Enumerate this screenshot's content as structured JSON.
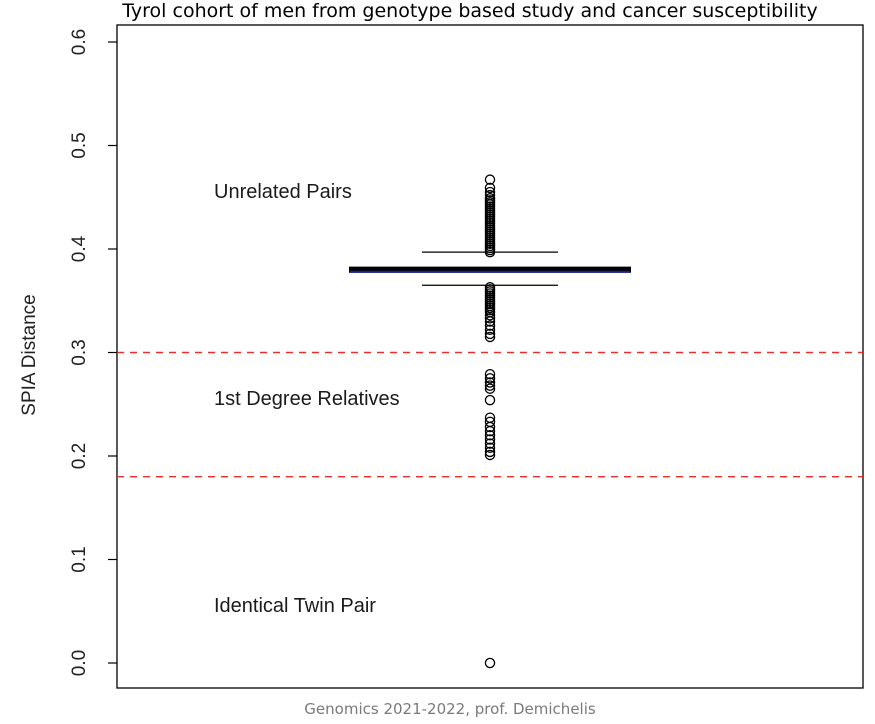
{
  "chart_data": {
    "type": "boxplot",
    "title": "Tyrol cohort of men from genotype based study and cancer susceptibility",
    "ylabel": "SPIA Distance",
    "xlabel": "",
    "ylim": [
      0.0,
      0.6
    ],
    "yticks": [
      0.0,
      0.1,
      0.2,
      0.3,
      0.4,
      0.5,
      0.6
    ],
    "ytick_labels": [
      "0.0",
      "0.1",
      "0.2",
      "0.3",
      "0.4",
      "0.5",
      "0.6"
    ],
    "grid": false,
    "thresholds": [
      {
        "y": 0.3,
        "color": "#e8302a",
        "style": "dashed"
      },
      {
        "y": 0.18,
        "color": "#e8302a",
        "style": "dashed"
      }
    ],
    "annotations": [
      {
        "text": "Unrelated Pairs",
        "y": 0.455
      },
      {
        "text": "1st Degree Relatives",
        "y": 0.255
      },
      {
        "text": "Identical Twin Pair",
        "y": 0.055
      }
    ],
    "box": {
      "q1": 0.378,
      "median": 0.38,
      "q3": 0.382,
      "whisker_low": 0.365,
      "whisker_high": 0.397,
      "median_color": "#1a1aa0"
    },
    "outliers": [
      0.467,
      0.459,
      0.455,
      0.452,
      0.449,
      0.447,
      0.445,
      0.443,
      0.441,
      0.439,
      0.437,
      0.435,
      0.433,
      0.431,
      0.429,
      0.427,
      0.425,
      0.423,
      0.421,
      0.419,
      0.417,
      0.415,
      0.413,
      0.411,
      0.409,
      0.407,
      0.405,
      0.403,
      0.401,
      0.399,
      0.397,
      0.363,
      0.361,
      0.359,
      0.357,
      0.355,
      0.353,
      0.351,
      0.349,
      0.347,
      0.345,
      0.343,
      0.341,
      0.339,
      0.336,
      0.333,
      0.33,
      0.326,
      0.322,
      0.318,
      0.315,
      0.279,
      0.275,
      0.271,
      0.268,
      0.265,
      0.254,
      0.237,
      0.233,
      0.228,
      0.224,
      0.22,
      0.216,
      0.212,
      0.208,
      0.204,
      0.201,
      0.0
    ]
  },
  "footer": "Genomics 2021-2022, prof. Demichelis"
}
